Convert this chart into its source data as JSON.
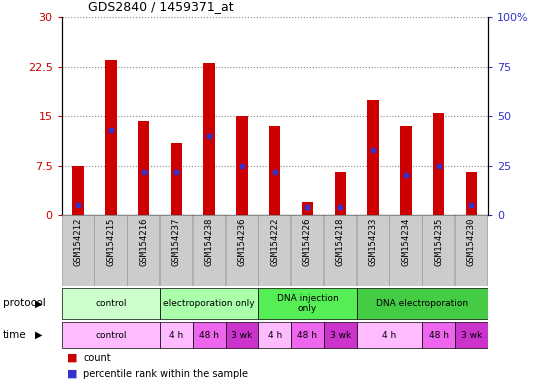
{
  "title": "GDS2840 / 1459371_at",
  "samples": [
    "GSM154212",
    "GSM154215",
    "GSM154216",
    "GSM154237",
    "GSM154238",
    "GSM154236",
    "GSM154222",
    "GSM154226",
    "GSM154218",
    "GSM154233",
    "GSM154234",
    "GSM154235",
    "GSM154230"
  ],
  "count_values": [
    7.5,
    23.5,
    14.2,
    11.0,
    23.0,
    15.0,
    13.5,
    2.0,
    6.5,
    17.5,
    13.5,
    15.5,
    6.5
  ],
  "percentile_values": [
    5.0,
    43.0,
    22.0,
    22.0,
    40.0,
    25.0,
    22.0,
    4.0,
    4.0,
    33.0,
    20.0,
    25.0,
    5.0
  ],
  "ylim_left": [
    0,
    30
  ],
  "ylim_right": [
    0,
    100
  ],
  "yticks_left": [
    0,
    7.5,
    15,
    22.5,
    30
  ],
  "yticks_right": [
    0,
    25,
    50,
    75,
    100
  ],
  "bar_color": "#cc0000",
  "percentile_color": "#3333cc",
  "bar_width": 0.35,
  "tick_color_left": "#cc0000",
  "tick_color_right": "#3333cc",
  "sample_box_color": "#cccccc",
  "protocol_groups": [
    {
      "label": "control",
      "start": 0,
      "end": 3,
      "color": "#ccffcc"
    },
    {
      "label": "electroporation only",
      "start": 3,
      "end": 6,
      "color": "#aaffaa"
    },
    {
      "label": "DNA injection\nonly",
      "start": 6,
      "end": 9,
      "color": "#55ee55"
    },
    {
      "label": "DNA electroporation",
      "start": 9,
      "end": 13,
      "color": "#44cc44"
    }
  ],
  "time_groups": [
    {
      "label": "control",
      "start": 0,
      "end": 3,
      "color": "#ffbbff"
    },
    {
      "label": "4 h",
      "start": 3,
      "end": 4,
      "color": "#ffbbff"
    },
    {
      "label": "48 h",
      "start": 4,
      "end": 5,
      "color": "#ee66ee"
    },
    {
      "label": "3 wk",
      "start": 5,
      "end": 6,
      "color": "#cc33cc"
    },
    {
      "label": "4 h",
      "start": 6,
      "end": 7,
      "color": "#ffbbff"
    },
    {
      "label": "48 h",
      "start": 7,
      "end": 8,
      "color": "#ee66ee"
    },
    {
      "label": "3 wk",
      "start": 8,
      "end": 9,
      "color": "#cc33cc"
    },
    {
      "label": "4 h",
      "start": 9,
      "end": 11,
      "color": "#ffbbff"
    },
    {
      "label": "48 h",
      "start": 11,
      "end": 12,
      "color": "#ee66ee"
    },
    {
      "label": "3 wk",
      "start": 12,
      "end": 13,
      "color": "#cc33cc"
    }
  ],
  "legend_count_color": "#cc0000",
  "legend_percentile_color": "#3333cc"
}
